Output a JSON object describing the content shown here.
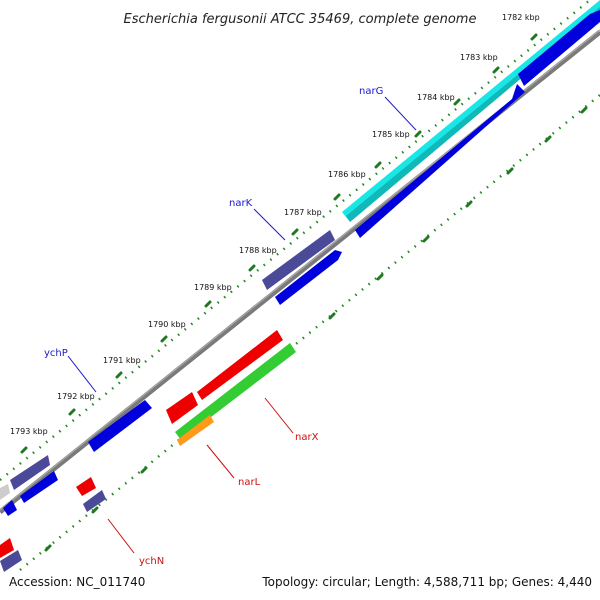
{
  "title": "Escherichia fergusonii ATCC 35469, complete genome",
  "footer": {
    "accession": "Accession: NC_011740",
    "summary": "Topology: circular; Length: 4,588,711 bp; Genes: 4,440"
  },
  "scale_labels": [
    "1782 kbp",
    "1783 kbp",
    "1784 kbp",
    "1785 kbp",
    "1786 kbp",
    "1787 kbp",
    "1788 kbp",
    "1789 kbp",
    "1790 kbp",
    "1791 kbp",
    "1792 kbp",
    "1793 kbp"
  ],
  "gene_labels": {
    "narG": "narG",
    "narK": "narK",
    "ychP": "ychP",
    "narX": "narX",
    "narL": "narL",
    "ychN": "ychN"
  },
  "colors": {
    "forward_cds": "#0000dd",
    "reverse_cds": "#ee0000",
    "narG_highlight": "#19e6e6",
    "narK_highlight": "#4a4a99",
    "narX_highlight": "#33cc33",
    "narL_highlight": "#ff9919",
    "backbone": "#7a7a7a",
    "tick_dots": "#228822"
  }
}
